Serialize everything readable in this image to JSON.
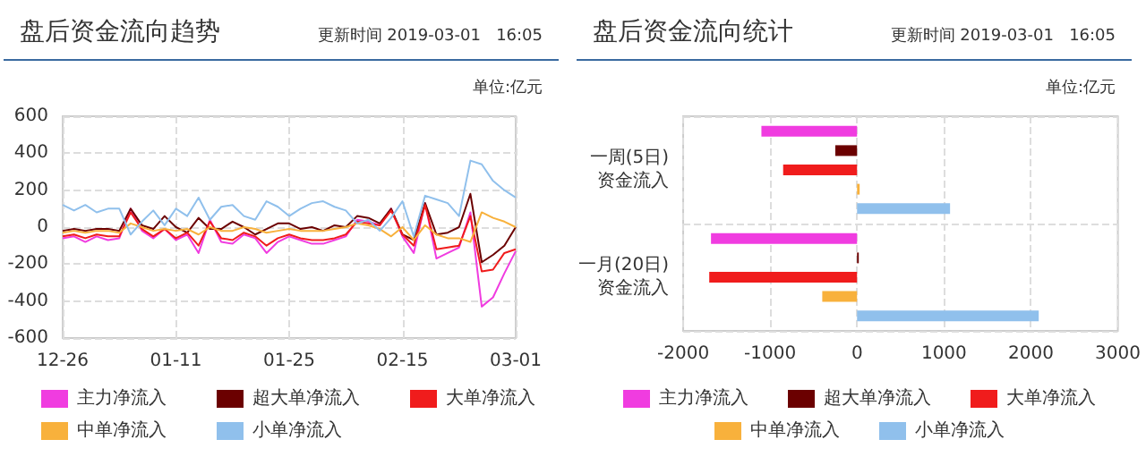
{
  "chart_data": [
    {
      "type": "line",
      "title": "盘后资金流向趋势",
      "subtitle": "更新时间 2019-03-01   16:05",
      "annotations": [
        "单位:亿元"
      ],
      "categories": [
        "12-26",
        null,
        null,
        null,
        null,
        null,
        null,
        null,
        null,
        null,
        "01-11",
        null,
        null,
        null,
        null,
        null,
        null,
        null,
        null,
        null,
        "01-25",
        null,
        null,
        null,
        null,
        null,
        null,
        null,
        null,
        null,
        "02-15",
        null,
        null,
        null,
        null,
        null,
        null,
        null,
        null,
        null,
        "03-01"
      ],
      "series": [
        {
          "name": "主力净流入",
          "color": "#f03ce0",
          "values": [
            -60,
            -50,
            -80,
            -50,
            -70,
            -60,
            100,
            -20,
            -60,
            -10,
            -70,
            -40,
            -140,
            40,
            -80,
            -90,
            -40,
            -60,
            -140,
            -80,
            -50,
            -70,
            -90,
            -90,
            -70,
            -50,
            40,
            30,
            10,
            100,
            -50,
            -140,
            130,
            -170,
            -140,
            -110,
            80,
            -430,
            -380,
            -250,
            -130
          ]
        },
        {
          "name": "超大单净流入",
          "color": "#6b0000",
          "values": [
            -20,
            -10,
            -20,
            -10,
            -10,
            -20,
            100,
            10,
            -10,
            60,
            0,
            -30,
            50,
            -10,
            -10,
            30,
            0,
            -40,
            -10,
            20,
            20,
            -10,
            0,
            -20,
            10,
            0,
            60,
            50,
            20,
            100,
            -40,
            -70,
            130,
            -40,
            -30,
            0,
            180,
            -190,
            -150,
            -100,
            0
          ]
        },
        {
          "name": "大单净流入",
          "color": "#f01c1c",
          "values": [
            -50,
            -40,
            -60,
            -40,
            -50,
            -50,
            80,
            -10,
            -50,
            -10,
            -60,
            -30,
            -100,
            30,
            -60,
            -70,
            -30,
            -50,
            -100,
            -60,
            -40,
            -60,
            -70,
            -70,
            -60,
            -40,
            30,
            20,
            10,
            90,
            -40,
            -100,
            120,
            -120,
            -110,
            -100,
            60,
            -240,
            -230,
            -140,
            -120
          ]
        },
        {
          "name": "中单净流入",
          "color": "#f8b13c",
          "values": [
            -30,
            -20,
            -30,
            -20,
            -20,
            -30,
            20,
            0,
            -20,
            -10,
            -20,
            -10,
            -40,
            0,
            -20,
            -20,
            0,
            -10,
            -30,
            -20,
            -10,
            -20,
            -20,
            -20,
            -10,
            0,
            20,
            10,
            -10,
            -50,
            0,
            -70,
            10,
            -40,
            -60,
            -60,
            -80,
            80,
            50,
            30,
            0
          ]
        },
        {
          "name": "小单净流入",
          "color": "#90c0ec",
          "values": [
            120,
            90,
            120,
            80,
            100,
            100,
            -40,
            30,
            90,
            10,
            100,
            60,
            160,
            40,
            110,
            120,
            60,
            40,
            140,
            110,
            60,
            100,
            130,
            140,
            110,
            90,
            20,
            40,
            -20,
            50,
            140,
            -50,
            170,
            150,
            130,
            60,
            360,
            340,
            250,
            200,
            160
          ]
        }
      ],
      "ylim": [
        -600,
        600
      ],
      "yticks": [
        -600,
        -400,
        -200,
        0,
        200,
        400,
        600
      ],
      "grid": true,
      "legend": "bottom",
      "marker": "none",
      "line_style": "solid"
    },
    {
      "type": "bar",
      "orientation": "horizontal",
      "title": "盘后资金流向统计",
      "subtitle": "更新时间 2019-03-01   16:05",
      "annotations": [
        "单位:亿元"
      ],
      "categories": [
        "一周(5日)\n资金流入",
        "一月(20日)\n资金流入"
      ],
      "series": [
        {
          "name": "主力净流入",
          "color": "#f03ce0",
          "values": [
            -1100,
            -1680
          ]
        },
        {
          "name": "超大单净流入",
          "color": "#6b0000",
          "values": [
            -250,
            20
          ]
        },
        {
          "name": "大单净流入",
          "color": "#f01c1c",
          "values": [
            -850,
            -1700
          ]
        },
        {
          "name": "中单净流入",
          "color": "#f8b13c",
          "values": [
            30,
            -400
          ]
        },
        {
          "name": "小单净流入",
          "color": "#90c0ec",
          "values": [
            1070,
            2090
          ]
        }
      ],
      "xlim": [
        -2000,
        3000
      ],
      "xticks": [
        -2000,
        -1000,
        0,
        1000,
        2000,
        3000
      ],
      "grid": true,
      "legend": "bottom"
    }
  ]
}
